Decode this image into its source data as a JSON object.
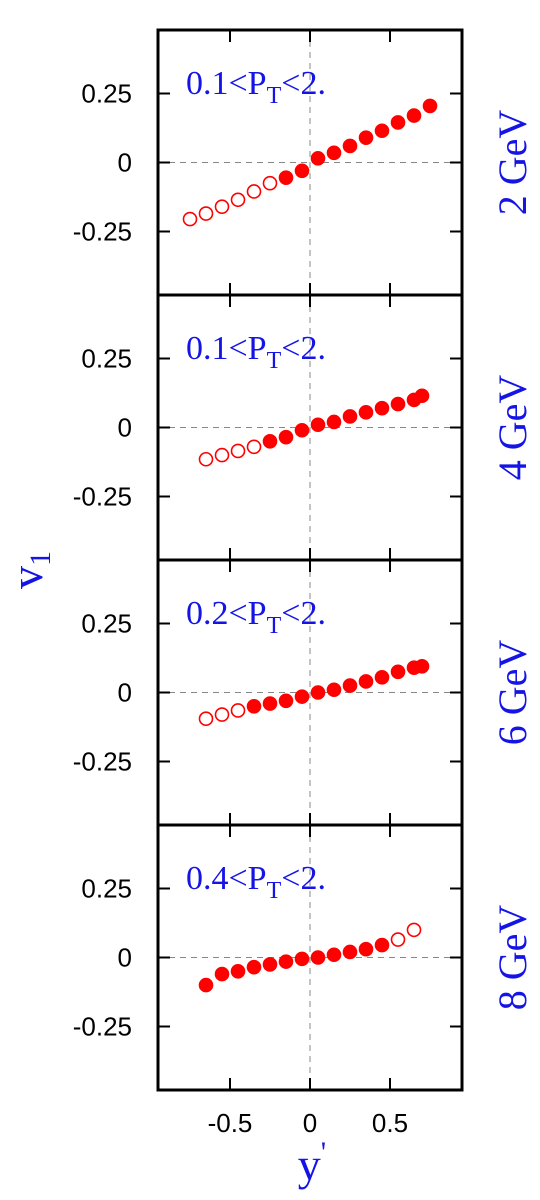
{
  "chart_data": {
    "type": "scatter",
    "ylabel": "v",
    "ylabel_subscript": "1",
    "xlabel": "y",
    "xlabel_mark": "'",
    "xlim": [
      -0.95,
      0.95
    ],
    "ylim": [
      -0.48,
      0.48
    ],
    "x_ticks": [
      -0.5,
      0,
      0.5
    ],
    "x_tick_labels": [
      "-0.5",
      "0",
      "0.5"
    ],
    "y_ticks": [
      0.25,
      0,
      -0.25
    ],
    "y_tick_labels": [
      "0.25",
      "0",
      "-0.25"
    ],
    "colors": {
      "points": "#ff0000",
      "labels": "#1414e6",
      "frame": "#000000",
      "reference_lines": "#888888"
    },
    "marker_note": "filled and open circles",
    "panels": [
      {
        "energy": "2 GeV",
        "pt_range": "0.1<P",
        "pt_sub": "T",
        "pt_tail": "<2.",
        "points": [
          {
            "x": -0.75,
            "y": -0.205,
            "filled": false
          },
          {
            "x": -0.65,
            "y": -0.185,
            "filled": false
          },
          {
            "x": -0.55,
            "y": -0.16,
            "filled": false
          },
          {
            "x": -0.45,
            "y": -0.135,
            "filled": false
          },
          {
            "x": -0.35,
            "y": -0.105,
            "filled": false
          },
          {
            "x": -0.25,
            "y": -0.075,
            "filled": false
          },
          {
            "x": -0.15,
            "y": -0.055,
            "filled": true
          },
          {
            "x": -0.05,
            "y": -0.03,
            "filled": true
          },
          {
            "x": 0.05,
            "y": 0.015,
            "filled": true
          },
          {
            "x": 0.15,
            "y": 0.035,
            "filled": true
          },
          {
            "x": 0.25,
            "y": 0.06,
            "filled": true
          },
          {
            "x": 0.35,
            "y": 0.09,
            "filled": true
          },
          {
            "x": 0.45,
            "y": 0.115,
            "filled": true
          },
          {
            "x": 0.55,
            "y": 0.145,
            "filled": true
          },
          {
            "x": 0.65,
            "y": 0.17,
            "filled": true
          },
          {
            "x": 0.75,
            "y": 0.205,
            "filled": true
          }
        ]
      },
      {
        "energy": "4 GeV",
        "pt_range": "0.1<P",
        "pt_sub": "T",
        "pt_tail": "<2.",
        "points": [
          {
            "x": -0.65,
            "y": -0.115,
            "filled": false
          },
          {
            "x": -0.55,
            "y": -0.1,
            "filled": false
          },
          {
            "x": -0.45,
            "y": -0.085,
            "filled": false
          },
          {
            "x": -0.35,
            "y": -0.07,
            "filled": false
          },
          {
            "x": -0.25,
            "y": -0.05,
            "filled": true
          },
          {
            "x": -0.15,
            "y": -0.035,
            "filled": true
          },
          {
            "x": -0.05,
            "y": -0.01,
            "filled": true
          },
          {
            "x": 0.05,
            "y": 0.01,
            "filled": true
          },
          {
            "x": 0.15,
            "y": 0.02,
            "filled": true
          },
          {
            "x": 0.25,
            "y": 0.04,
            "filled": true
          },
          {
            "x": 0.35,
            "y": 0.055,
            "filled": true
          },
          {
            "x": 0.45,
            "y": 0.07,
            "filled": true
          },
          {
            "x": 0.55,
            "y": 0.085,
            "filled": true
          },
          {
            "x": 0.65,
            "y": 0.1,
            "filled": true
          },
          {
            "x": 0.7,
            "y": 0.115,
            "filled": true
          }
        ]
      },
      {
        "energy": "6 GeV",
        "pt_range": "0.2<P",
        "pt_sub": "T",
        "pt_tail": "<2.",
        "points": [
          {
            "x": -0.65,
            "y": -0.095,
            "filled": false
          },
          {
            "x": -0.55,
            "y": -0.08,
            "filled": false
          },
          {
            "x": -0.45,
            "y": -0.065,
            "filled": false
          },
          {
            "x": -0.35,
            "y": -0.05,
            "filled": true
          },
          {
            "x": -0.25,
            "y": -0.04,
            "filled": true
          },
          {
            "x": -0.15,
            "y": -0.03,
            "filled": true
          },
          {
            "x": -0.05,
            "y": -0.015,
            "filled": true
          },
          {
            "x": 0.05,
            "y": 0.0,
            "filled": true
          },
          {
            "x": 0.15,
            "y": 0.01,
            "filled": true
          },
          {
            "x": 0.25,
            "y": 0.025,
            "filled": true
          },
          {
            "x": 0.35,
            "y": 0.04,
            "filled": true
          },
          {
            "x": 0.45,
            "y": 0.055,
            "filled": true
          },
          {
            "x": 0.55,
            "y": 0.075,
            "filled": true
          },
          {
            "x": 0.65,
            "y": 0.09,
            "filled": true
          },
          {
            "x": 0.7,
            "y": 0.095,
            "filled": true
          }
        ]
      },
      {
        "energy": "8 GeV",
        "pt_range": "0.4<P",
        "pt_sub": "T",
        "pt_tail": "<2.",
        "points": [
          {
            "x": -0.65,
            "y": -0.1,
            "filled": true
          },
          {
            "x": -0.55,
            "y": -0.06,
            "filled": true
          },
          {
            "x": -0.45,
            "y": -0.05,
            "filled": true
          },
          {
            "x": -0.35,
            "y": -0.035,
            "filled": true
          },
          {
            "x": -0.25,
            "y": -0.025,
            "filled": true
          },
          {
            "x": -0.15,
            "y": -0.015,
            "filled": true
          },
          {
            "x": -0.05,
            "y": -0.005,
            "filled": true
          },
          {
            "x": 0.05,
            "y": 0.0,
            "filled": true
          },
          {
            "x": 0.15,
            "y": 0.01,
            "filled": true
          },
          {
            "x": 0.25,
            "y": 0.02,
            "filled": true
          },
          {
            "x": 0.35,
            "y": 0.03,
            "filled": true
          },
          {
            "x": 0.45,
            "y": 0.045,
            "filled": true
          },
          {
            "x": 0.55,
            "y": 0.065,
            "filled": false
          },
          {
            "x": 0.65,
            "y": 0.1,
            "filled": false
          }
        ]
      }
    ]
  }
}
